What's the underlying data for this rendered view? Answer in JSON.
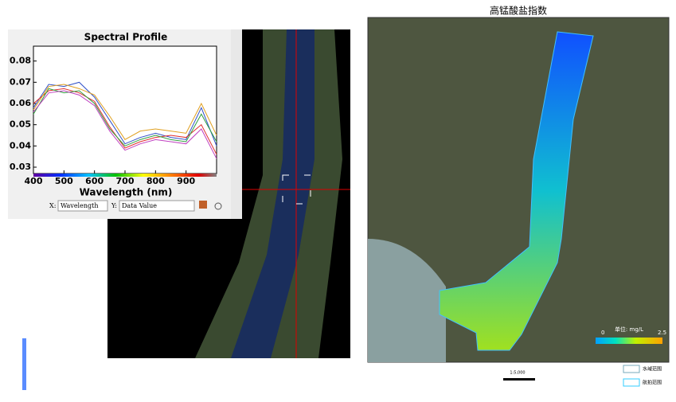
{
  "chart_data": {
    "type": "line",
    "title": "Spectral Profile",
    "x_label": "Wavelength (nm)",
    "x": [
      400,
      450,
      500,
      550,
      600,
      650,
      700,
      750,
      800,
      850,
      900,
      950,
      1000
    ],
    "series": [
      {
        "color": "#3050c8",
        "values": [
          0.058,
          0.069,
          0.068,
          0.07,
          0.063,
          0.052,
          0.041,
          0.044,
          0.046,
          0.044,
          0.043,
          0.058,
          0.04
        ]
      },
      {
        "color": "#e03030",
        "values": [
          0.06,
          0.066,
          0.067,
          0.065,
          0.061,
          0.049,
          0.039,
          0.042,
          0.044,
          0.045,
          0.044,
          0.05,
          0.036
        ]
      },
      {
        "color": "#30a040",
        "values": [
          0.055,
          0.067,
          0.065,
          0.066,
          0.06,
          0.048,
          0.04,
          0.043,
          0.045,
          0.043,
          0.042,
          0.055,
          0.042
        ]
      },
      {
        "color": "#e0a020",
        "values": [
          0.057,
          0.068,
          0.069,
          0.067,
          0.064,
          0.054,
          0.043,
          0.047,
          0.048,
          0.047,
          0.046,
          0.06,
          0.045
        ]
      },
      {
        "color": "#c040c0",
        "values": [
          0.056,
          0.065,
          0.066,
          0.064,
          0.059,
          0.047,
          0.038,
          0.041,
          0.043,
          0.042,
          0.041,
          0.048,
          0.034
        ]
      }
    ],
    "xlim": [
      400,
      1000
    ],
    "ylim": [
      0.027,
      0.087
    ],
    "xticks": [
      400,
      500,
      600,
      700,
      800,
      900
    ],
    "yticks": [
      0.03,
      0.04,
      0.05,
      0.06,
      0.07,
      0.08
    ]
  },
  "controls": {
    "x_prefix": "X:",
    "x_select": "Wavelength",
    "y_prefix": "Y:",
    "y_select": "Data Value"
  },
  "map": {
    "title": "高锰酸盐指数",
    "colorbar_min": "0",
    "colorbar_max": "2.5",
    "unit": "单位: mg/L",
    "scale": "1:5,000",
    "legend": [
      "水域范围",
      "航拍范围"
    ]
  }
}
